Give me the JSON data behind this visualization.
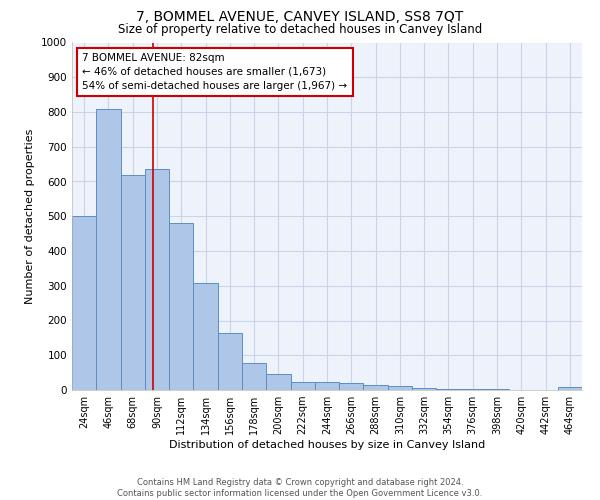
{
  "title": "7, BOMMEL AVENUE, CANVEY ISLAND, SS8 7QT",
  "subtitle": "Size of property relative to detached houses in Canvey Island",
  "xlabel": "Distribution of detached houses by size in Canvey Island",
  "ylabel": "Number of detached properties",
  "footer_line1": "Contains HM Land Registry data © Crown copyright and database right 2024.",
  "footer_line2": "Contains public sector information licensed under the Open Government Licence v3.0.",
  "categories": [
    "24sqm",
    "46sqm",
    "68sqm",
    "90sqm",
    "112sqm",
    "134sqm",
    "156sqm",
    "178sqm",
    "200sqm",
    "222sqm",
    "244sqm",
    "266sqm",
    "288sqm",
    "310sqm",
    "332sqm",
    "354sqm",
    "376sqm",
    "398sqm",
    "420sqm",
    "442sqm",
    "464sqm"
  ],
  "values": [
    500,
    810,
    620,
    635,
    480,
    308,
    163,
    78,
    45,
    24,
    22,
    20,
    13,
    12,
    7,
    4,
    3,
    3,
    0,
    0,
    10
  ],
  "bar_color": "#aec6e8",
  "bar_edge_color": "#5a8fc4",
  "property_line_x": 2.82,
  "annotation_line1": "7 BOMMEL AVENUE: 82sqm",
  "annotation_line2": "← 46% of detached houses are smaller (1,673)",
  "annotation_line3": "54% of semi-detached houses are larger (1,967) →",
  "annotation_box_color": "#ffffff",
  "annotation_box_edge_color": "#cc0000",
  "ylim": [
    0,
    1000
  ],
  "yticks": [
    0,
    100,
    200,
    300,
    400,
    500,
    600,
    700,
    800,
    900,
    1000
  ],
  "grid_color": "#c8d4e8",
  "bg_color": "#eef2fa",
  "title_fontsize": 10,
  "subtitle_fontsize": 8.5,
  "xlabel_fontsize": 8,
  "ylabel_fontsize": 8,
  "tick_fontsize": 7,
  "annot_fontsize": 7.5,
  "footer_fontsize": 6,
  "red_line_color": "#cc0000"
}
